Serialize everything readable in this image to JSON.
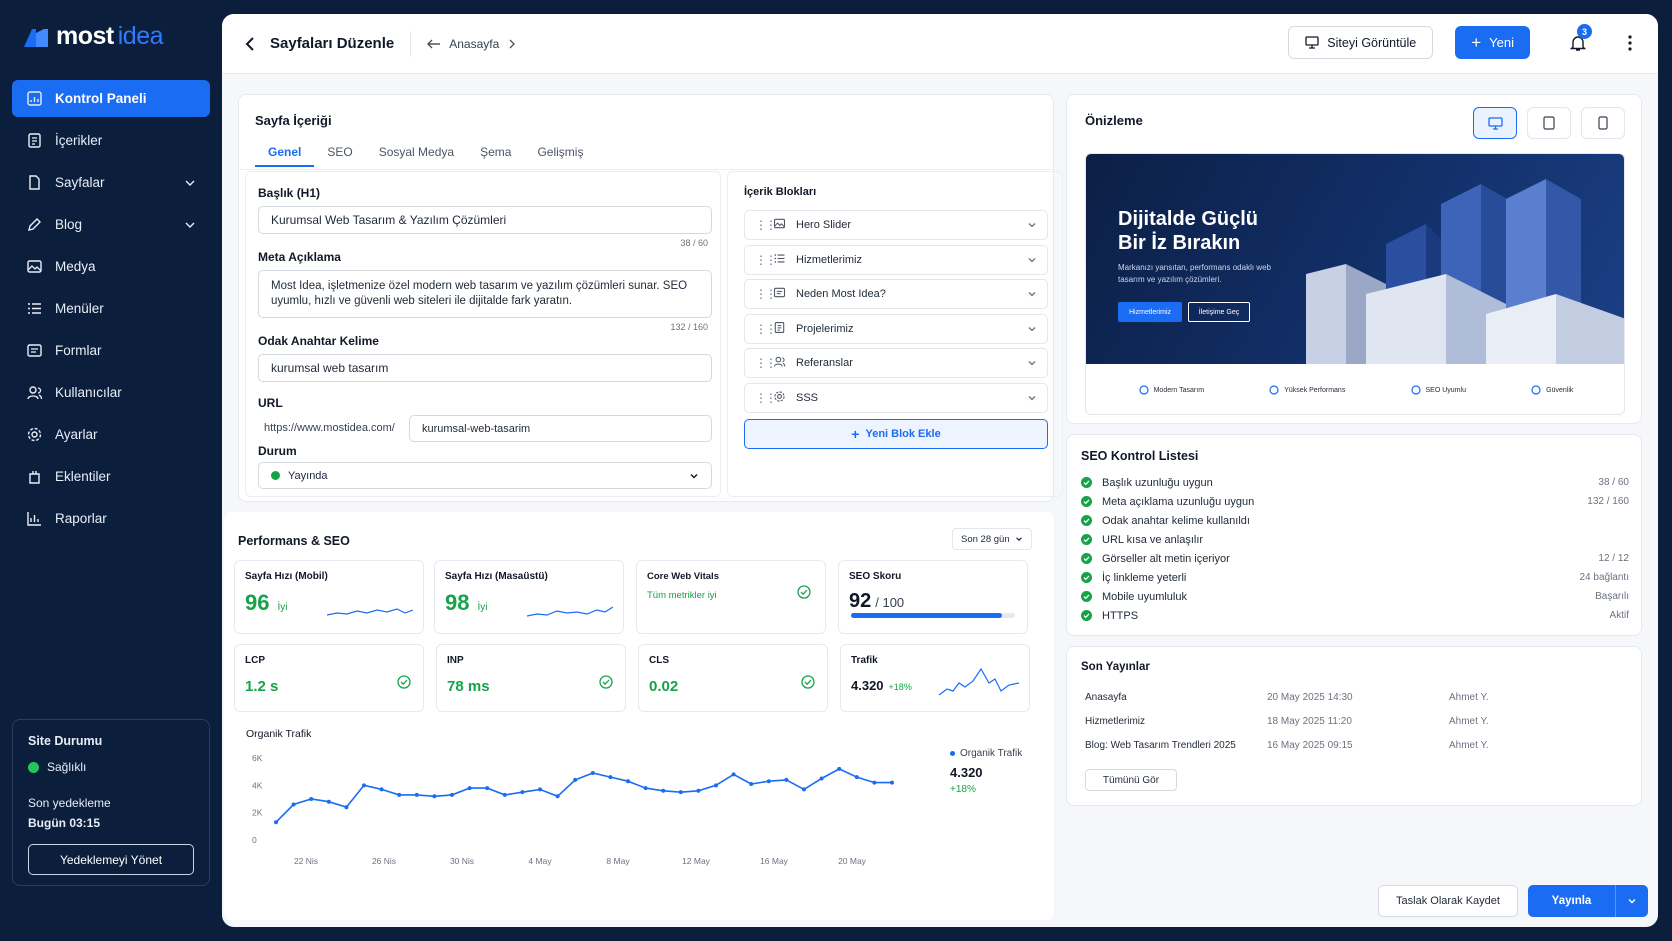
{
  "brand": {
    "part1": "most",
    "part2": "idea"
  },
  "sidebar": {
    "items": [
      {
        "label": "Kontrol Paneli",
        "icon": "dashboard-icon",
        "active": true,
        "chev": false
      },
      {
        "label": "İçerikler",
        "icon": "document-icon",
        "active": false,
        "chev": false
      },
      {
        "label": "Sayfalar",
        "icon": "file-icon",
        "active": false,
        "chev": true
      },
      {
        "label": "Blog",
        "icon": "pen-icon",
        "active": false,
        "chev": true
      },
      {
        "label": "Medya",
        "icon": "image-icon",
        "active": false,
        "chev": false
      },
      {
        "label": "Menüler",
        "icon": "list-icon",
        "active": false,
        "chev": false
      },
      {
        "label": "Formlar",
        "icon": "form-icon",
        "active": false,
        "chev": false
      },
      {
        "label": "Kullanıcılar",
        "icon": "users-icon",
        "active": false,
        "chev": false
      },
      {
        "label": "Ayarlar",
        "icon": "gear-icon",
        "active": false,
        "chev": false
      },
      {
        "label": "Eklentiler",
        "icon": "plugin-icon",
        "active": false,
        "chev": false
      },
      {
        "label": "Raporlar",
        "icon": "chart-icon",
        "active": false,
        "chev": false
      }
    ],
    "status": {
      "title": "Site Durumu",
      "health": "Sağlıklı",
      "backup_label": "Son yedekleme",
      "backup_time": "Bugün 03:15",
      "manage_button": "Yedeklemeyi Yönet"
    }
  },
  "topbar": {
    "title": "Sayfaları Düzenle",
    "breadcrumb": "Anasayfa",
    "view_site": "Siteyi Görüntüle",
    "new_button": "Yeni",
    "notif_count": "3"
  },
  "content": {
    "title": "Sayfa İçeriği",
    "tabs": [
      "Genel",
      "SEO",
      "Sosyal Medya",
      "Şema",
      "Gelişmiş"
    ],
    "heading_label": "Başlık (H1)",
    "heading_value": "Kurumsal Web Tasarım & Yazılım Çözümleri",
    "heading_count": "38 / 60",
    "meta_label": "Meta Açıklama",
    "meta_value": "Most Idea, işletmenize özel modern web tasarım ve yazılım çözümleri sunar. SEO uyumlu, hızlı ve güvenli web siteleri ile dijitalde fark yaratın.",
    "meta_count": "132 / 160",
    "keyword_label": "Odak Anahtar Kelime",
    "keyword_value": "kurumsal web tasarım",
    "url_label": "URL",
    "url_prefix": "https://www.mostidea.com/",
    "url_slug": "kurumsal-web-tasarim",
    "status_label": "Durum",
    "status_value": "Yayında"
  },
  "blocks": {
    "title": "İçerik Blokları",
    "items": [
      "Hero Slider",
      "Hizmetlerimiz",
      "Neden Most Idea?",
      "Projelerimiz",
      "Referanslar",
      "SSS"
    ],
    "add_button": "Yeni Blok Ekle"
  },
  "preview": {
    "title": "Önizleme",
    "hero_title_1": "Dijitalde Güçlü",
    "hero_title_2": "Bir İz Bırakın",
    "hero_sub": "Markanızı yansıtan, performans odaklı web tasarım ve yazılım çözümleri.",
    "btn1": "Hizmetlerimiz",
    "btn2": "İletişime Geç",
    "features": [
      "Modern Tasarım",
      "Yüksek Performans",
      "SEO Uyumlu",
      "Güvenlik"
    ]
  },
  "performance": {
    "title": "Performans & SEO",
    "range": "Son 28 gün",
    "metrics": {
      "mobile": {
        "label": "Sayfa Hızı (Mobil)",
        "value": "96",
        "status": "İyi"
      },
      "desktop": {
        "label": "Sayfa Hızı (Masaüstü)",
        "value": "98",
        "status": "İyi"
      },
      "cwv": {
        "label": "Core Web Vitals",
        "status": "Tüm metrikler iyi"
      },
      "seo": {
        "label": "SEO Skoru",
        "value": "92",
        "suffix": "/ 100",
        "progress": 0.92
      },
      "lcp": {
        "label": "LCP",
        "value": "1.2 s"
      },
      "inp": {
        "label": "INP",
        "value": "78 ms"
      },
      "cls": {
        "label": "CLS",
        "value": "0.02"
      },
      "traffic": {
        "label": "Trafik",
        "value": "4.320",
        "delta": "+18%"
      }
    }
  },
  "chart_data": {
    "type": "line",
    "title": "Organik Trafik",
    "x_ticks": [
      "22 Nis",
      "26 Nis",
      "30 Nis",
      "4 May",
      "8 May",
      "12 May",
      "16 May",
      "20 May"
    ],
    "y_ticks": [
      "0",
      "2K",
      "4K",
      "6K"
    ],
    "ylim": [
      0,
      6000
    ],
    "series": [
      {
        "name": "Organik Trafik",
        "values": [
          1300,
          2600,
          3000,
          2800,
          2400,
          4000,
          3700,
          3300,
          3300,
          3200,
          3300,
          3800,
          3800,
          3300,
          3500,
          3700,
          3200,
          4400,
          4900,
          4600,
          4300,
          3800,
          3600,
          3500,
          3600,
          4000,
          4800,
          4100,
          4300,
          4400,
          3700,
          4500,
          5200,
          4600,
          4200,
          4200
        ]
      }
    ],
    "legend_value": "4.320",
    "legend_delta": "+18%"
  },
  "seo_checklist": {
    "title": "SEO Kontrol Listesi",
    "items": [
      {
        "label": "Başlık uzunluğu uygun",
        "value": "38 / 60"
      },
      {
        "label": "Meta açıklama uzunluğu uygun",
        "value": "132 / 160"
      },
      {
        "label": "Odak anahtar kelime kullanıldı",
        "value": ""
      },
      {
        "label": "URL kısa ve anlaşılır",
        "value": ""
      },
      {
        "label": "Görseller alt metin içeriyor",
        "value": "12 / 12"
      },
      {
        "label": "İç linkleme yeterli",
        "value": "24 bağlantı"
      },
      {
        "label": "Mobile uyumluluk",
        "value": "Başarılı"
      },
      {
        "label": "HTTPS",
        "value": "Aktif"
      }
    ]
  },
  "recent": {
    "title": "Son Yayınlar",
    "rows": [
      {
        "page": "Anasayfa",
        "date": "20 May 2025 14:30",
        "author": "Ahmet Y."
      },
      {
        "page": "Hizmetlerimiz",
        "date": "18 May 2025 11:20",
        "author": "Ahmet Y."
      },
      {
        "page": "Blog: Web Tasarım Trendleri 2025",
        "date": "16 May 2025 09:15",
        "author": "Ahmet Y."
      }
    ],
    "see_all": "Tümünü Gör"
  },
  "footer": {
    "draft": "Taslak Olarak Kaydet",
    "publish": "Yayınla"
  },
  "colors": {
    "accent": "#1a6cf2",
    "success": "#16a34a",
    "sidebar_bg": "#0b1f3d"
  }
}
